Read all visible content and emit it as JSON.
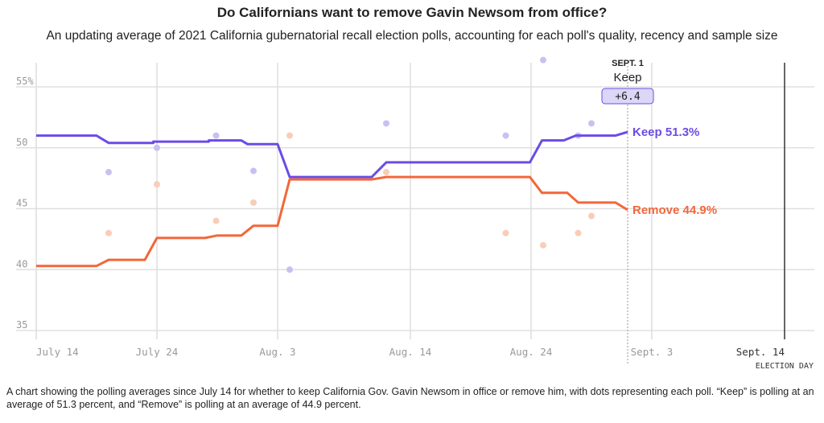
{
  "chart_data": {
    "type": "line",
    "title": "Do Californians want to remove Gavin Newsom from office?",
    "subtitle": "An updating average of 2021 California gubernatorial recall election polls, accounting for each poll's quality, recency and sample size",
    "x_unit": "days since July 14",
    "xlim": [
      0,
      62
    ],
    "ylim": [
      35,
      57
    ],
    "yticks": [
      {
        "v": 55,
        "label": "55%"
      },
      {
        "v": 50,
        "label": "50"
      },
      {
        "v": 45,
        "label": "45"
      },
      {
        "v": 40,
        "label": "40"
      },
      {
        "v": 35,
        "label": "35"
      }
    ],
    "xticks": [
      {
        "v": 0,
        "label": "July 14"
      },
      {
        "v": 10,
        "label": "July 24"
      },
      {
        "v": 20,
        "label": "Aug. 3"
      },
      {
        "v": 31,
        "label": "Aug. 14"
      },
      {
        "v": 41,
        "label": "Aug. 24"
      },
      {
        "v": 51,
        "label": "Sept. 3"
      },
      {
        "v": 62,
        "label": "Sept. 14",
        "sub": "ELECTION DAY"
      }
    ],
    "series": [
      {
        "name": "Keep",
        "color": "#6b4ce6",
        "dotcolor": "#c9c0f2",
        "end_label": "Keep 51.3%",
        "line": [
          [
            0,
            51.0
          ],
          [
            5,
            51.0
          ],
          [
            6,
            50.4
          ],
          [
            9.7,
            50.4
          ],
          [
            9.7,
            50.5
          ],
          [
            14.3,
            50.5
          ],
          [
            14.3,
            50.6
          ],
          [
            17,
            50.6
          ],
          [
            17.5,
            50.3
          ],
          [
            20,
            50.3
          ],
          [
            21,
            47.6
          ],
          [
            27.8,
            47.6
          ],
          [
            29,
            48.8
          ],
          [
            40.9,
            48.8
          ],
          [
            41.9,
            50.6
          ],
          [
            43.7,
            50.6
          ],
          [
            44.7,
            51.0
          ],
          [
            48,
            51.0
          ],
          [
            49,
            51.3
          ]
        ],
        "polls": [
          [
            6,
            48.0
          ],
          [
            10,
            50.0
          ],
          [
            14.9,
            51.0
          ],
          [
            18,
            48.1
          ],
          [
            21,
            40.0
          ],
          [
            29,
            52.0
          ],
          [
            38.9,
            51.0
          ],
          [
            42,
            57.2
          ],
          [
            44.9,
            51.0
          ],
          [
            46,
            52.0
          ]
        ]
      },
      {
        "name": "Remove",
        "color": "#f2673a",
        "dotcolor": "#f9cdb8",
        "end_label": "Remove 44.9%",
        "line": [
          [
            0,
            40.3
          ],
          [
            5,
            40.3
          ],
          [
            6,
            40.8
          ],
          [
            9,
            40.8
          ],
          [
            10,
            42.6
          ],
          [
            14,
            42.6
          ],
          [
            15,
            42.8
          ],
          [
            17,
            42.8
          ],
          [
            18,
            43.6
          ],
          [
            20,
            43.6
          ],
          [
            21,
            47.4
          ],
          [
            27.8,
            47.4
          ],
          [
            29,
            47.6
          ],
          [
            40.9,
            47.6
          ],
          [
            41.9,
            46.3
          ],
          [
            44,
            46.3
          ],
          [
            44.9,
            45.5
          ],
          [
            48,
            45.5
          ],
          [
            49,
            44.9
          ]
        ],
        "polls": [
          [
            6,
            43.0
          ],
          [
            10,
            47.0
          ],
          [
            14.9,
            44.0
          ],
          [
            18,
            45.5
          ],
          [
            21,
            51.0
          ],
          [
            29,
            48.0
          ],
          [
            38.9,
            43.0
          ],
          [
            42,
            42.0
          ],
          [
            44.9,
            43.0
          ],
          [
            46,
            44.4
          ]
        ]
      }
    ],
    "current": {
      "day": 49,
      "date_label": "SEPT. 1",
      "leader": "Keep",
      "margin": "+6.4"
    }
  },
  "caption": "A chart showing the polling averages since July 14 for whether to keep California Gov. Gavin Newsom in office or remove him, with dots representing each poll. “Keep” is polling at an average of 51.3 percent, and “Remove” is polling at an average of 44.9 percent."
}
